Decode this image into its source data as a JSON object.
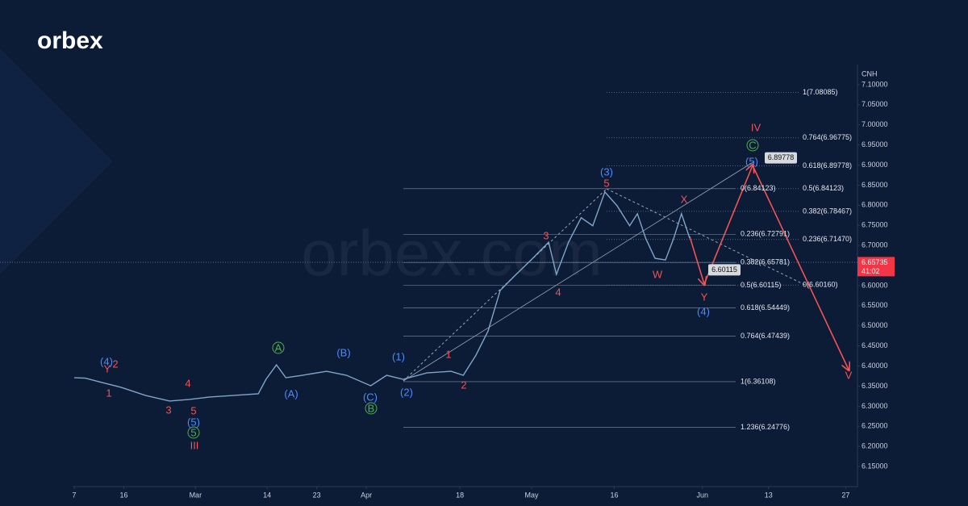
{
  "brand": "orbex",
  "watermark": "orbex.com",
  "chart_data": {
    "type": "line",
    "axis_title": "CNH",
    "color": "#7fa6c9",
    "x": [
      38,
      40,
      43.6,
      46.5,
      50.9,
      55.3,
      58.9,
      62.6,
      67,
      71.4,
      72.8,
      74.7,
      76.4,
      79.4,
      83.8,
      87.4,
      91.8,
      94.7,
      97.7,
      102,
      106.4,
      108.6,
      110.9,
      113.1,
      115.3,
      118.2,
      121.2,
      124.1,
      125.5,
      127.7,
      130,
      132.1,
      134.3,
      136.5,
      138.8,
      140.2,
      141.7,
      143.4,
      145.3,
      146.8,
      148.2,
      149.7
    ],
    "values": [
      6.371,
      6.37,
      6.357,
      6.347,
      6.327,
      6.313,
      6.317,
      6.323,
      6.327,
      6.331,
      6.367,
      6.403,
      6.371,
      6.377,
      6.387,
      6.377,
      6.351,
      6.377,
      6.367,
      6.383,
      6.387,
      6.377,
      6.427,
      6.487,
      6.588,
      6.628,
      6.668,
      6.708,
      6.628,
      6.708,
      6.769,
      6.749,
      6.833,
      6.799,
      6.749,
      6.779,
      6.718,
      6.668,
      6.664,
      6.718,
      6.779,
      6.718
    ],
    "xlim": [
      37.7,
      180
    ],
    "xticks": [
      {
        "value": 38,
        "label": "7"
      },
      {
        "value": 47,
        "label": "16"
      },
      {
        "value": 60,
        "label": "Mar"
      },
      {
        "value": 73,
        "label": "14"
      },
      {
        "value": 82,
        "label": "23"
      },
      {
        "value": 91,
        "label": "Apr"
      },
      {
        "value": 108,
        "label": "18"
      },
      {
        "value": 121,
        "label": "May"
      },
      {
        "value": 136,
        "label": "16"
      },
      {
        "value": 152,
        "label": "Jun"
      },
      {
        "value": 164,
        "label": "13"
      },
      {
        "value": 178,
        "label": "27"
      }
    ],
    "ylim": [
      6.106,
      7.14
    ],
    "yticks": [
      {
        "value": 6.15,
        "label": "6.15000"
      },
      {
        "value": 6.2,
        "label": "6.20000"
      },
      {
        "value": 6.25,
        "label": "6.25000"
      },
      {
        "value": 6.3,
        "label": "6.30000"
      },
      {
        "value": 6.35,
        "label": "6.35000"
      },
      {
        "value": 6.4,
        "label": "6.40000"
      },
      {
        "value": 6.45,
        "label": "6.45000"
      },
      {
        "value": 6.5,
        "label": "6.50000"
      },
      {
        "value": 6.55,
        "label": "6.55000"
      },
      {
        "value": 6.6,
        "label": "6.60000"
      },
      {
        "value": 6.65,
        "label": "6.65000"
      },
      {
        "value": 6.7,
        "label": "6.70000"
      },
      {
        "value": 6.75,
        "label": "6.75000"
      },
      {
        "value": 6.8,
        "label": "6.80000"
      },
      {
        "value": 6.85,
        "label": "6.85000"
      },
      {
        "value": 6.9,
        "label": "6.90000"
      },
      {
        "value": 6.95,
        "label": "6.95000"
      },
      {
        "value": 7.0,
        "label": "7.00000"
      },
      {
        "value": 7.05,
        "label": "7.05000"
      },
      {
        "value": 7.1,
        "label": "7.10000"
      }
    ],
    "last_price": 6.65735,
    "countdown": "41:02",
    "last_price_color": "#f23645",
    "callouts": [
      6.89778,
      6.60115
    ],
    "fib_left": [
      {
        "value": 6.84123,
        "label": "0(6.84123)"
      },
      {
        "value": 6.72791,
        "label": "0.236(6.72791)"
      },
      {
        "value": 6.65781,
        "label": "0.382(6.65781)"
      },
      {
        "value": 6.60115,
        "label": "0.5(6.60115)"
      },
      {
        "value": 6.54449,
        "label": "0.618(6.54449)"
      },
      {
        "value": 6.47439,
        "label": "0.764(6.47439)"
      },
      {
        "value": 6.36108,
        "label": "1(6.36108)"
      },
      {
        "value": 6.24776,
        "label": "1.236(6.24776)"
      }
    ],
    "fib_right": [
      {
        "value": 7.08085,
        "label": "1(7.08085)"
      },
      {
        "value": 6.96775,
        "label": "0.764(6.96775)"
      },
      {
        "value": 6.89778,
        "label": "0.618(6.89778)"
      },
      {
        "value": 6.84123,
        "label": "0.5(6.84123)"
      },
      {
        "value": 6.78467,
        "label": "0.382(6.78467)"
      },
      {
        "value": 6.7147,
        "label": "0.236(6.71470)"
      },
      {
        "value": 6.6016,
        "label": "0(6.60160)"
      }
    ],
    "wave_labels": [
      {
        "text": "1",
        "color": "#f05454"
      },
      {
        "text": "2",
        "color": "#f05454"
      },
      {
        "text": "3",
        "color": "#f05454"
      },
      {
        "text": "4",
        "color": "#f05454"
      },
      {
        "text": "5",
        "color": "#f05454"
      },
      {
        "text": "III",
        "color": "#f05454"
      },
      {
        "text": "Y",
        "color": "#f05454"
      },
      {
        "text": "1",
        "color": "#f05454"
      },
      {
        "text": "2",
        "color": "#f05454"
      },
      {
        "text": "3",
        "color": "#f05454"
      },
      {
        "text": "4",
        "color": "#f05454"
      },
      {
        "text": "5",
        "color": "#f05454"
      },
      {
        "text": "W",
        "color": "#f05454"
      },
      {
        "text": "X",
        "color": "#f05454"
      },
      {
        "text": "Y",
        "color": "#f05454"
      },
      {
        "text": "IV",
        "color": "#f05454"
      },
      {
        "text": "V",
        "color": "#f05454"
      },
      {
        "text": "(4)",
        "color": "#4a8cff"
      },
      {
        "text": "(5)",
        "color": "#4a8cff"
      },
      {
        "text": "(A)",
        "color": "#4a8cff"
      },
      {
        "text": "(B)",
        "color": "#4a8cff"
      },
      {
        "text": "(C)",
        "color": "#4a8cff"
      },
      {
        "text": "(1)",
        "color": "#4a8cff"
      },
      {
        "text": "(2)",
        "color": "#4a8cff"
      },
      {
        "text": "(3)",
        "color": "#4a8cff"
      },
      {
        "text": "(4)",
        "color": "#4a8cff"
      },
      {
        "text": "(5)",
        "color": "#4a8cff"
      },
      {
        "text": "5",
        "color": "#4caf50",
        "style": "circle"
      },
      {
        "text": "A",
        "color": "#4caf50",
        "style": "circle"
      },
      {
        "text": "B",
        "color": "#4caf50",
        "style": "circle"
      },
      {
        "text": "C",
        "color": "#4caf50",
        "style": "circle"
      }
    ]
  }
}
